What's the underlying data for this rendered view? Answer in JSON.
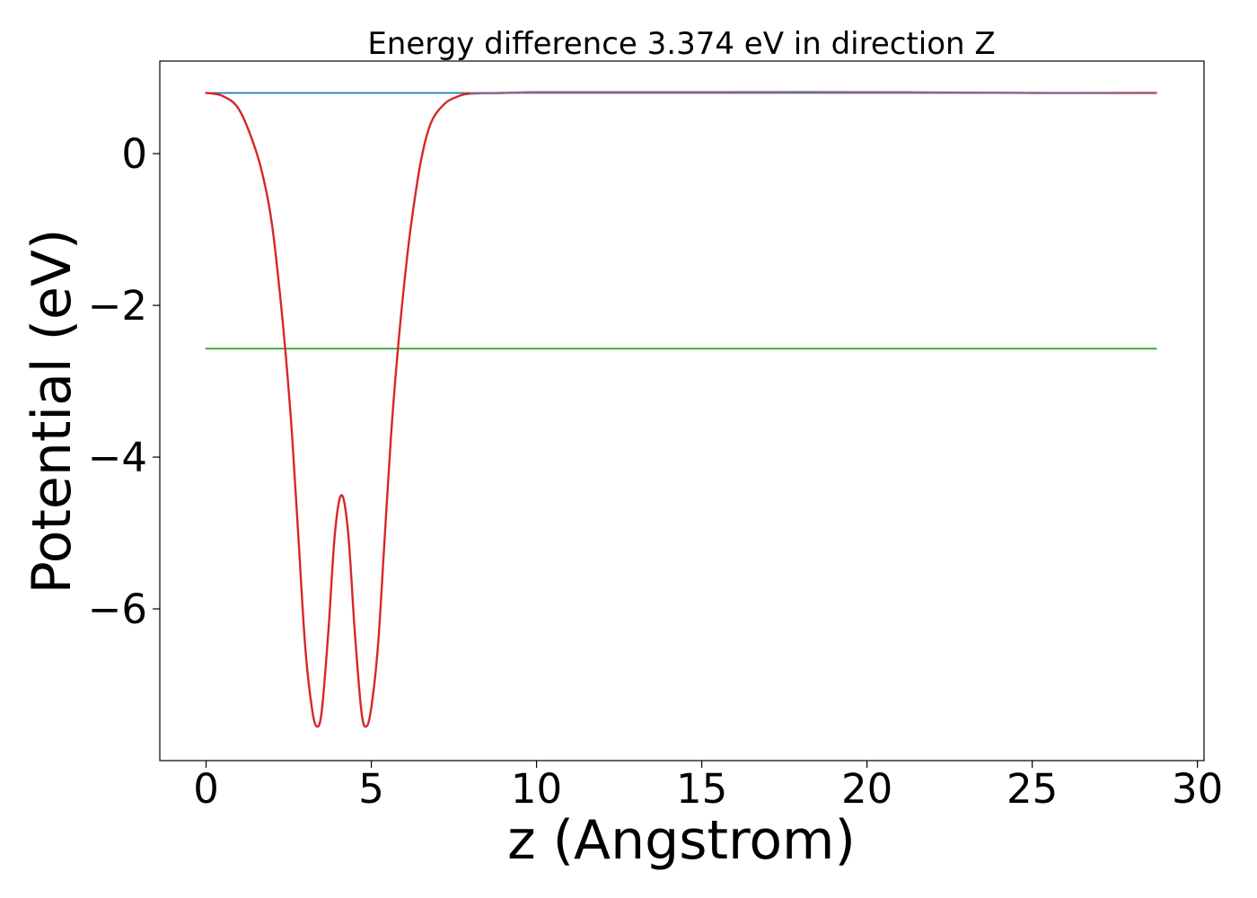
{
  "chart_data": {
    "type": "line",
    "title": "Energy difference 3.374 eV in direction Z",
    "xlabel": "z (Angstrom)",
    "ylabel": "Potential (eV)",
    "xlim": [
      -1.4,
      30.2
    ],
    "ylim": [
      -8.0,
      1.22
    ],
    "xticks": [
      0,
      5,
      10,
      15,
      20,
      25,
      30
    ],
    "xtick_labels": [
      "0",
      "5",
      "10",
      "15",
      "20",
      "25",
      "30"
    ],
    "yticks": [
      0,
      -2,
      -4,
      -6
    ],
    "ytick_labels": [
      "0",
      "−2",
      "−4",
      "−6"
    ],
    "grid": false,
    "series": [
      {
        "color": "#1f77b4",
        "x": [
          0,
          28.75
        ],
        "y": [
          0.8,
          0.8
        ]
      },
      {
        "color": "#2ca02c",
        "x": [
          0,
          28.75
        ],
        "y": [
          -2.57,
          -2.57
        ]
      },
      {
        "color": "#d62728",
        "x": [
          0.0,
          0.5,
          1.0,
          1.5,
          1.8,
          2.0,
          2.2,
          2.4,
          2.6,
          2.8,
          3.0,
          3.2,
          3.35,
          3.5,
          3.7,
          3.9,
          4.1,
          4.3,
          4.5,
          4.7,
          4.85,
          5.0,
          5.2,
          5.4,
          5.6,
          5.8,
          6.0,
          6.2,
          6.5,
          6.8,
          7.2,
          7.6,
          8.0,
          9.0,
          10.0,
          12.0,
          15.0,
          20.0,
          25.0,
          28.75
        ],
        "y": [
          0.8,
          0.76,
          0.58,
          0.05,
          -0.45,
          -0.95,
          -1.7,
          -2.6,
          -3.7,
          -5.1,
          -6.5,
          -7.3,
          -7.55,
          -7.35,
          -6.3,
          -5.0,
          -4.5,
          -5.0,
          -6.3,
          -7.35,
          -7.55,
          -7.3,
          -6.5,
          -5.1,
          -3.7,
          -2.6,
          -1.7,
          -0.95,
          -0.1,
          0.4,
          0.65,
          0.75,
          0.79,
          0.8,
          0.81,
          0.81,
          0.81,
          0.81,
          0.8,
          0.8
        ]
      },
      {
        "color": "#7d6fa0",
        "x": [
          8.0,
          9.0,
          10.0,
          12.0,
          15.0,
          20.0,
          25.0,
          28.75
        ],
        "y": [
          0.79,
          0.8,
          0.81,
          0.81,
          0.81,
          0.81,
          0.8,
          0.8
        ]
      }
    ]
  }
}
